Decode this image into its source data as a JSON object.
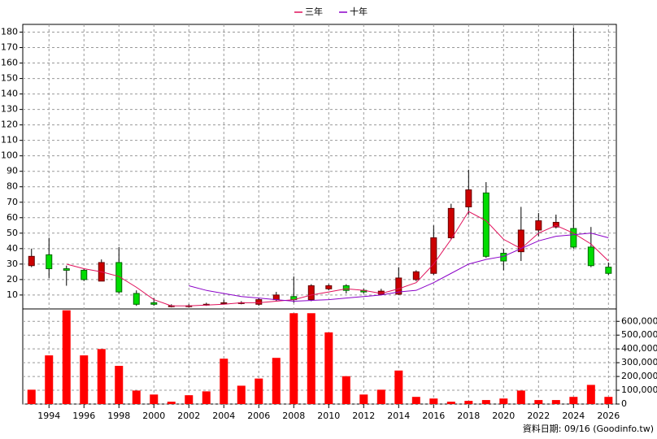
{
  "chart_data": [
    {
      "type": "candlestick",
      "x": [
        1993,
        1994,
        1995,
        1996,
        1997,
        1998,
        1999,
        2000,
        2001,
        2002,
        2003,
        2004,
        2005,
        2006,
        2007,
        2008,
        2009,
        2010,
        2011,
        2012,
        2013,
        2014,
        2015,
        2016,
        2017,
        2018,
        2019,
        2020,
        2021,
        2022,
        2023,
        2024,
        2025,
        2026
      ],
      "open": [
        29,
        36,
        27,
        26,
        19,
        31,
        11,
        5,
        3,
        3,
        3.5,
        4.5,
        4.8,
        4,
        7,
        9,
        7,
        14,
        16,
        13,
        10.5,
        10.5,
        20,
        24,
        47,
        67,
        76,
        37,
        38,
        52,
        54,
        53,
        41,
        28
      ],
      "high": [
        40,
        47,
        29,
        27,
        33,
        41,
        13,
        8,
        4,
        4,
        5,
        7,
        6,
        8,
        12,
        22,
        17,
        17,
        17,
        14,
        14,
        28,
        26,
        55,
        69,
        91,
        83,
        40,
        67,
        63,
        62,
        183,
        54,
        31
      ],
      "low": [
        28,
        21,
        16,
        19,
        19,
        11,
        3,
        3,
        2,
        2,
        3,
        4,
        4,
        3,
        6,
        5,
        6,
        13,
        11,
        11,
        10,
        10,
        19,
        23,
        46,
        62,
        34,
        26,
        32,
        48,
        53,
        40,
        28,
        23
      ],
      "close": [
        35,
        27,
        26,
        20,
        31,
        12,
        4,
        4,
        3,
        3,
        4,
        5,
        5,
        7,
        10,
        7,
        16,
        16,
        13,
        12,
        12.5,
        21,
        25,
        47,
        66,
        78,
        35,
        32,
        52,
        58,
        57,
        41,
        29,
        24
      ],
      "up_color": "#cc0000",
      "down_color": "#00dd00",
      "series": [
        {
          "name": "三年",
          "color": "#e0105a",
          "values": [
            null,
            null,
            30,
            27,
            25,
            22,
            15,
            7,
            3,
            3,
            3.5,
            4,
            5,
            5,
            6,
            7,
            10,
            12,
            14,
            13,
            11,
            14,
            18,
            30,
            46,
            64,
            58,
            46,
            40,
            50,
            55,
            50,
            43,
            32
          ]
        },
        {
          "name": "十年",
          "color": "#8a00c8",
          "values": [
            null,
            null,
            null,
            null,
            null,
            null,
            null,
            null,
            null,
            16,
            13,
            11,
            9,
            8,
            7,
            6,
            6.5,
            7,
            8,
            9,
            10,
            12,
            13,
            18,
            24,
            30,
            33,
            35,
            40,
            45,
            48,
            49,
            50,
            47
          ]
        }
      ],
      "xlim": [
        1992.5,
        2026.45
      ],
      "ylim": [
        1,
        185
      ],
      "yticks": [
        10,
        20,
        30,
        40,
        50,
        60,
        70,
        80,
        90,
        100,
        110,
        120,
        130,
        140,
        150,
        160,
        170,
        180
      ],
      "grid": true
    },
    {
      "type": "bar",
      "x": [
        1993,
        1994,
        1995,
        1996,
        1997,
        1998,
        1999,
        2000,
        2001,
        2002,
        2003,
        2004,
        2005,
        2006,
        2007,
        2008,
        2009,
        2010,
        2011,
        2012,
        2013,
        2014,
        2015,
        2016,
        2017,
        2018,
        2019,
        2020,
        2021,
        2022,
        2023,
        2024,
        2025,
        2026
      ],
      "values": [
        104000,
        353000,
        680000,
        353000,
        399000,
        277000,
        98000,
        69000,
        17000,
        64000,
        92000,
        329000,
        133000,
        185000,
        335000,
        659000,
        659000,
        520000,
        202000,
        69000,
        104000,
        243000,
        52000,
        40000,
        17000,
        23000,
        29000,
        40000,
        98000,
        29000,
        29000,
        52000,
        139000,
        52000
      ],
      "color": "#ff0000",
      "xlim": [
        1992.5,
        2026.45
      ],
      "ylim": [
        0,
        690000
      ],
      "xticks": [
        1994,
        1996,
        1998,
        2000,
        2002,
        2004,
        2006,
        2008,
        2010,
        2012,
        2014,
        2016,
        2018,
        2020,
        2022,
        2024,
        2026
      ],
      "yticks": [
        {
          "value": 0,
          "label": "0"
        },
        {
          "value": 100000,
          "label": "100,000"
        },
        {
          "value": 200000,
          "label": "200,000"
        },
        {
          "value": 300000,
          "label": "300,000"
        },
        {
          "value": 400000,
          "label": "400,000"
        },
        {
          "value": 500000,
          "label": "500,000"
        },
        {
          "value": 600000,
          "label": "600,000"
        }
      ],
      "grid": true,
      "footnote": "資料日期: 09/16 (Goodinfo.tw)"
    }
  ]
}
